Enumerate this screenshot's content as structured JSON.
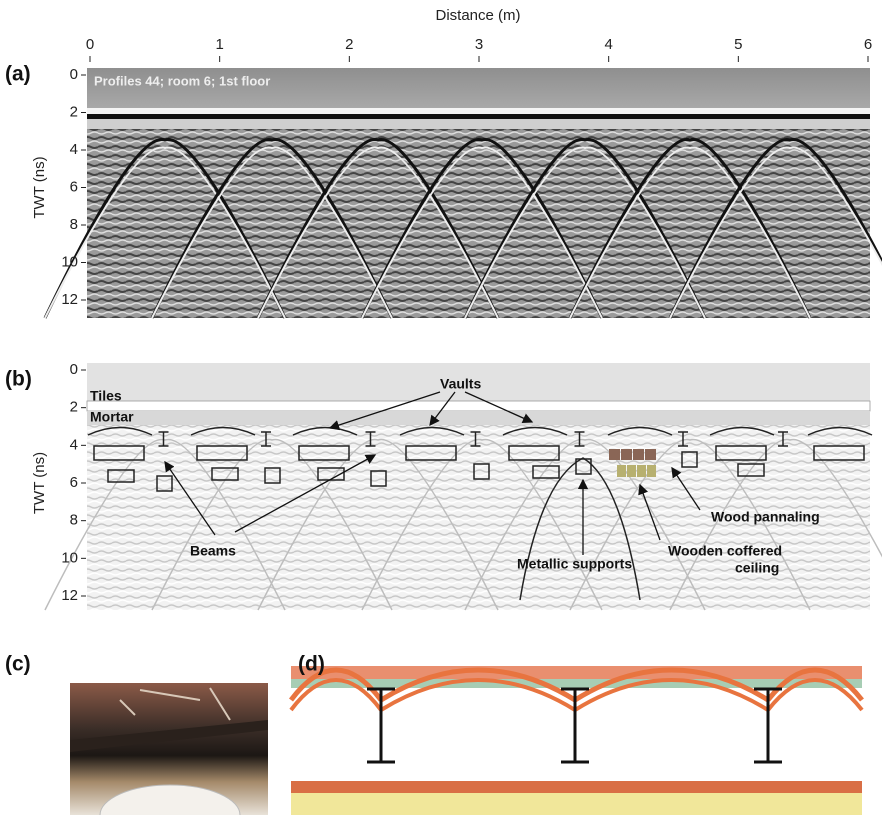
{
  "x_axis": {
    "title": "Distance (m)",
    "ticks": [
      0,
      1,
      2,
      3,
      4,
      5,
      6
    ]
  },
  "panels": [
    {
      "label": "(a)",
      "y_axis_title": "TWT (ns)",
      "yticks": [
        0,
        2,
        4,
        6,
        8,
        10,
        12
      ],
      "caption": "Profiles 44; room 6; 1st floor"
    },
    {
      "label": "(b)",
      "y_axis_title": "TWT (ns)",
      "yticks": [
        0,
        2,
        4,
        6,
        8,
        10,
        12
      ],
      "annotations": {
        "tiles": "Tiles",
        "mortar": "Mortar",
        "vaults": "Vaults",
        "beams": "Beams",
        "metallic": "Metallic supports",
        "coffered": [
          "Wooden coffered",
          "ceiling"
        ],
        "panneling": "Wood pannaling"
      }
    },
    {
      "label": "(c)"
    },
    {
      "label": "(d)"
    }
  ]
}
